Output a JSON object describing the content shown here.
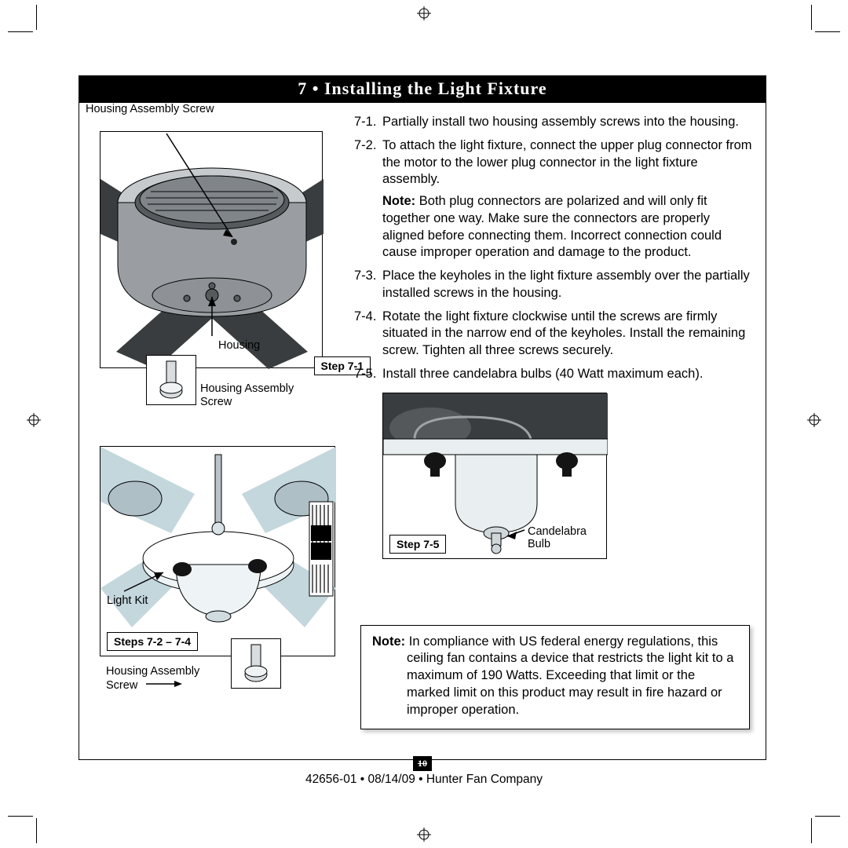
{
  "title": "7 • Installing the Light Fixture",
  "page_number": "10",
  "footer": "42656-01  •  08/14/09  •  Hunter Fan Company",
  "figures": {
    "fig1": {
      "step_tag": "Step 7-1",
      "callouts": {
        "top": "Housing Assembly Screw",
        "mid": "Housing",
        "inset": "Housing Assembly\nScrew"
      },
      "colors": {
        "body": "#9a9ea2",
        "shadow": "#575a5d",
        "rim": "#c6cacd",
        "blade": "#3a3d3f"
      }
    },
    "fig2": {
      "step_tag": "Steps 7-2 – 7-4",
      "callouts": {
        "lightkit": "Light Kit",
        "inset": "Housing Assembly\nScrew"
      },
      "colors": {
        "body": "#c3d7dd",
        "plate": "#eef4f6",
        "knob": "#141414",
        "wire_box": "#000"
      }
    },
    "fig3": {
      "step_tag": "Step 7-5",
      "callouts": {
        "bulb": "Candelabra\nBulb"
      },
      "colors": {
        "top": "#3a3d3f",
        "body": "#e9eef0",
        "knob": "#141414"
      }
    }
  },
  "steps": [
    {
      "num": "7-1.",
      "text": "Partially install two housing assembly screws into the housing."
    },
    {
      "num": "7-2.",
      "text": "To attach the light fixture, connect the upper plug connector from the motor to the lower plug connector in the light fixture assembly.",
      "note": "Both plug connectors are polarized and will only fit together one way. Make sure the connectors are properly aligned before connecting them. Incorrect connection could cause improper operation and damage to the product."
    },
    {
      "num": "7-3.",
      "text": "Place the keyholes in the light fixture assembly over the partially installed screws in the housing."
    },
    {
      "num": "7-4.",
      "text": "Rotate the light fixture clockwise until the screws are firmly situated in the narrow end of the keyholes. Install the remaining screw. Tighten all three screws securely."
    },
    {
      "num": "7-5.",
      "text": "Install three candelabra bulbs (40 Watt maximum each)."
    }
  ],
  "compliance_note": "In compliance with US federal energy regulations, this ceiling fan contains a device that restricts the light kit to a maximum of 190 Watts. Exceeding that limit or the marked limit on this product may result in fire hazard or improper operation."
}
